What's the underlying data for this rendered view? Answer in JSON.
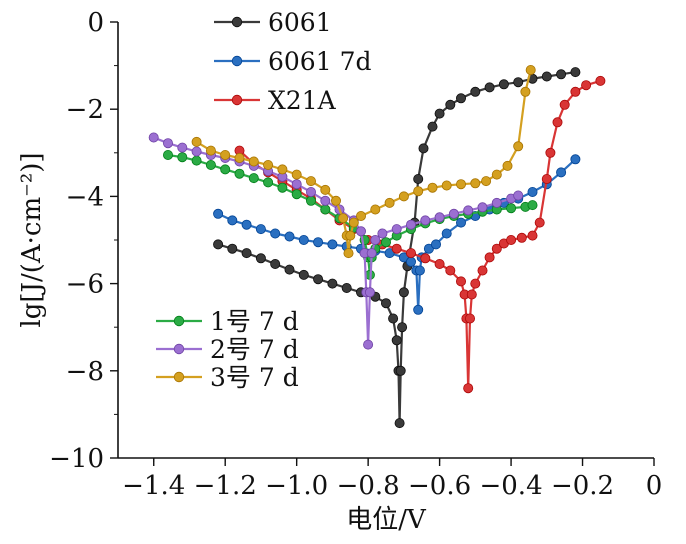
{
  "chart_data": {
    "type": "line",
    "title": "",
    "xlabel": "电位/V",
    "ylabel": "lg[J/(A·cm⁻²)]",
    "xlim": [
      -1.5,
      0
    ],
    "ylim": [
      -10,
      0
    ],
    "x_ticks": [
      -1.4,
      -1.2,
      -1.0,
      -0.8,
      -0.6,
      -0.4,
      -0.2,
      0
    ],
    "x_tick_labels": [
      "−1.4",
      "−1.2",
      "−1.0",
      "−0.8",
      "−0.6",
      "−0.4",
      "−0.2",
      "0"
    ],
    "y_ticks": [
      0,
      -2,
      -4,
      -6,
      -8,
      -10
    ],
    "y_tick_labels": [
      "0",
      "−2",
      "−4",
      "−6",
      "−8",
      "−10"
    ],
    "grid": false,
    "legend_placement": [
      "top-center",
      "bottom-left"
    ],
    "series": [
      {
        "name": "6061",
        "color": "#3a3a3a",
        "points": [
          [
            -1.22,
            -5.1
          ],
          [
            -1.18,
            -5.2
          ],
          [
            -1.14,
            -5.3
          ],
          [
            -1.1,
            -5.42
          ],
          [
            -1.06,
            -5.55
          ],
          [
            -1.02,
            -5.68
          ],
          [
            -0.98,
            -5.8
          ],
          [
            -0.94,
            -5.9
          ],
          [
            -0.9,
            -6.0
          ],
          [
            -0.86,
            -6.1
          ],
          [
            -0.82,
            -6.2
          ],
          [
            -0.78,
            -6.3
          ],
          [
            -0.75,
            -6.45
          ],
          [
            -0.73,
            -6.8
          ],
          [
            -0.72,
            -7.3
          ],
          [
            -0.715,
            -8.0
          ],
          [
            -0.712,
            -9.2
          ],
          [
            -0.709,
            -8.0
          ],
          [
            -0.705,
            -7.0
          ],
          [
            -0.7,
            -6.2
          ],
          [
            -0.69,
            -5.6
          ],
          [
            -0.67,
            -4.6
          ],
          [
            -0.66,
            -3.6
          ],
          [
            -0.645,
            -2.9
          ],
          [
            -0.62,
            -2.4
          ],
          [
            -0.6,
            -2.1
          ],
          [
            -0.57,
            -1.9
          ],
          [
            -0.54,
            -1.75
          ],
          [
            -0.5,
            -1.6
          ],
          [
            -0.46,
            -1.5
          ],
          [
            -0.42,
            -1.43
          ],
          [
            -0.38,
            -1.38
          ],
          [
            -0.34,
            -1.3
          ],
          [
            -0.3,
            -1.25
          ],
          [
            -0.26,
            -1.2
          ],
          [
            -0.22,
            -1.15
          ]
        ]
      },
      {
        "name": "6061 7d",
        "color": "#2a6fc0",
        "points": [
          [
            -1.22,
            -4.4
          ],
          [
            -1.18,
            -4.55
          ],
          [
            -1.14,
            -4.65
          ],
          [
            -1.1,
            -4.75
          ],
          [
            -1.06,
            -4.85
          ],
          [
            -1.02,
            -4.92
          ],
          [
            -0.98,
            -5.0
          ],
          [
            -0.94,
            -5.05
          ],
          [
            -0.9,
            -5.1
          ],
          [
            -0.86,
            -5.15
          ],
          [
            -0.82,
            -5.2
          ],
          [
            -0.78,
            -5.25
          ],
          [
            -0.74,
            -5.3
          ],
          [
            -0.7,
            -5.4
          ],
          [
            -0.68,
            -5.5
          ],
          [
            -0.665,
            -5.7
          ],
          [
            -0.66,
            -6.6
          ],
          [
            -0.655,
            -5.7
          ],
          [
            -0.65,
            -5.4
          ],
          [
            -0.63,
            -5.2
          ],
          [
            -0.61,
            -5.1
          ],
          [
            -0.58,
            -4.85
          ],
          [
            -0.54,
            -4.6
          ],
          [
            -0.5,
            -4.45
          ],
          [
            -0.46,
            -4.3
          ],
          [
            -0.42,
            -4.15
          ],
          [
            -0.38,
            -4.05
          ],
          [
            -0.34,
            -3.9
          ],
          [
            -0.3,
            -3.72
          ],
          [
            -0.26,
            -3.45
          ],
          [
            -0.22,
            -3.15
          ]
        ]
      },
      {
        "name": "X21A",
        "color": "#d93535",
        "points": [
          [
            -1.16,
            -2.95
          ],
          [
            -1.12,
            -3.25
          ],
          [
            -1.08,
            -3.45
          ],
          [
            -1.04,
            -3.65
          ],
          [
            -1.0,
            -3.85
          ],
          [
            -0.96,
            -4.05
          ],
          [
            -0.92,
            -4.3
          ],
          [
            -0.88,
            -4.55
          ],
          [
            -0.84,
            -4.75
          ],
          [
            -0.8,
            -5.0
          ],
          [
            -0.76,
            -5.1
          ],
          [
            -0.72,
            -5.2
          ],
          [
            -0.68,
            -5.3
          ],
          [
            -0.64,
            -5.42
          ],
          [
            -0.6,
            -5.55
          ],
          [
            -0.57,
            -5.7
          ],
          [
            -0.54,
            -5.95
          ],
          [
            -0.53,
            -6.25
          ],
          [
            -0.525,
            -6.8
          ],
          [
            -0.52,
            -8.4
          ],
          [
            -0.515,
            -6.8
          ],
          [
            -0.51,
            -6.25
          ],
          [
            -0.5,
            -6.0
          ],
          [
            -0.48,
            -5.7
          ],
          [
            -0.46,
            -5.4
          ],
          [
            -0.44,
            -5.2
          ],
          [
            -0.42,
            -5.08
          ],
          [
            -0.4,
            -5.0
          ],
          [
            -0.37,
            -4.95
          ],
          [
            -0.34,
            -4.9
          ],
          [
            -0.32,
            -4.6
          ],
          [
            -0.3,
            -3.6
          ],
          [
            -0.29,
            -3.0
          ],
          [
            -0.27,
            -2.3
          ],
          [
            -0.25,
            -1.9
          ],
          [
            -0.22,
            -1.6
          ],
          [
            -0.19,
            -1.45
          ],
          [
            -0.15,
            -1.35
          ]
        ]
      },
      {
        "name": "1号 7 d",
        "color": "#2bab45",
        "points": [
          [
            -1.36,
            -3.05
          ],
          [
            -1.32,
            -3.1
          ],
          [
            -1.28,
            -3.18
          ],
          [
            -1.24,
            -3.28
          ],
          [
            -1.2,
            -3.38
          ],
          [
            -1.16,
            -3.48
          ],
          [
            -1.12,
            -3.58
          ],
          [
            -1.08,
            -3.68
          ],
          [
            -1.04,
            -3.8
          ],
          [
            -1.0,
            -3.95
          ],
          [
            -0.96,
            -4.1
          ],
          [
            -0.92,
            -4.3
          ],
          [
            -0.88,
            -4.5
          ],
          [
            -0.84,
            -4.72
          ],
          [
            -0.81,
            -5.0
          ],
          [
            -0.8,
            -5.4
          ],
          [
            -0.795,
            -5.8
          ],
          [
            -0.79,
            -5.4
          ],
          [
            -0.78,
            -5.2
          ],
          [
            -0.75,
            -5.05
          ],
          [
            -0.72,
            -4.9
          ],
          [
            -0.68,
            -4.75
          ],
          [
            -0.64,
            -4.62
          ],
          [
            -0.6,
            -4.52
          ],
          [
            -0.56,
            -4.45
          ],
          [
            -0.52,
            -4.4
          ],
          [
            -0.48,
            -4.35
          ],
          [
            -0.44,
            -4.3
          ],
          [
            -0.4,
            -4.27
          ],
          [
            -0.36,
            -4.24
          ],
          [
            -0.34,
            -4.2
          ]
        ]
      },
      {
        "name": "2号 7 d",
        "color": "#9b6fd1",
        "points": [
          [
            -1.4,
            -2.65
          ],
          [
            -1.36,
            -2.78
          ],
          [
            -1.32,
            -2.88
          ],
          [
            -1.28,
            -2.97
          ],
          [
            -1.24,
            -3.05
          ],
          [
            -1.2,
            -3.12
          ],
          [
            -1.16,
            -3.2
          ],
          [
            -1.12,
            -3.3
          ],
          [
            -1.08,
            -3.42
          ],
          [
            -1.04,
            -3.55
          ],
          [
            -1.0,
            -3.72
          ],
          [
            -0.96,
            -3.9
          ],
          [
            -0.92,
            -4.1
          ],
          [
            -0.88,
            -4.3
          ],
          [
            -0.84,
            -4.55
          ],
          [
            -0.82,
            -4.8
          ],
          [
            -0.81,
            -5.3
          ],
          [
            -0.805,
            -6.2
          ],
          [
            -0.8,
            -7.4
          ],
          [
            -0.795,
            -6.2
          ],
          [
            -0.79,
            -5.3
          ],
          [
            -0.78,
            -5.0
          ],
          [
            -0.76,
            -4.85
          ],
          [
            -0.72,
            -4.75
          ],
          [
            -0.68,
            -4.65
          ],
          [
            -0.64,
            -4.55
          ],
          [
            -0.6,
            -4.48
          ],
          [
            -0.56,
            -4.4
          ],
          [
            -0.52,
            -4.32
          ],
          [
            -0.48,
            -4.25
          ],
          [
            -0.44,
            -4.15
          ],
          [
            -0.4,
            -4.05
          ],
          [
            -0.38,
            -3.98
          ]
        ]
      },
      {
        "name": "3号 7 d",
        "color": "#d4a020",
        "points": [
          [
            -1.28,
            -2.75
          ],
          [
            -1.24,
            -2.95
          ],
          [
            -1.2,
            -3.05
          ],
          [
            -1.16,
            -3.12
          ],
          [
            -1.12,
            -3.2
          ],
          [
            -1.08,
            -3.28
          ],
          [
            -1.04,
            -3.38
          ],
          [
            -1.0,
            -3.5
          ],
          [
            -0.96,
            -3.65
          ],
          [
            -0.92,
            -3.85
          ],
          [
            -0.89,
            -4.1
          ],
          [
            -0.87,
            -4.5
          ],
          [
            -0.86,
            -4.9
          ],
          [
            -0.855,
            -5.3
          ],
          [
            -0.85,
            -4.9
          ],
          [
            -0.84,
            -4.6
          ],
          [
            -0.82,
            -4.45
          ],
          [
            -0.78,
            -4.3
          ],
          [
            -0.74,
            -4.15
          ],
          [
            -0.7,
            -4.0
          ],
          [
            -0.66,
            -3.88
          ],
          [
            -0.62,
            -3.8
          ],
          [
            -0.58,
            -3.75
          ],
          [
            -0.54,
            -3.72
          ],
          [
            -0.5,
            -3.7
          ],
          [
            -0.47,
            -3.65
          ],
          [
            -0.44,
            -3.5
          ],
          [
            -0.41,
            -3.3
          ],
          [
            -0.38,
            -2.85
          ],
          [
            -0.36,
            -1.6
          ],
          [
            -0.345,
            -1.1
          ]
        ]
      }
    ],
    "legend": [
      {
        "group": "top",
        "labels": [
          "6061",
          "6061 7d",
          "X21A"
        ]
      },
      {
        "group": "bottom",
        "labels": [
          "1号 7 d",
          "2号 7 d",
          "3号 7 d"
        ]
      }
    ]
  }
}
